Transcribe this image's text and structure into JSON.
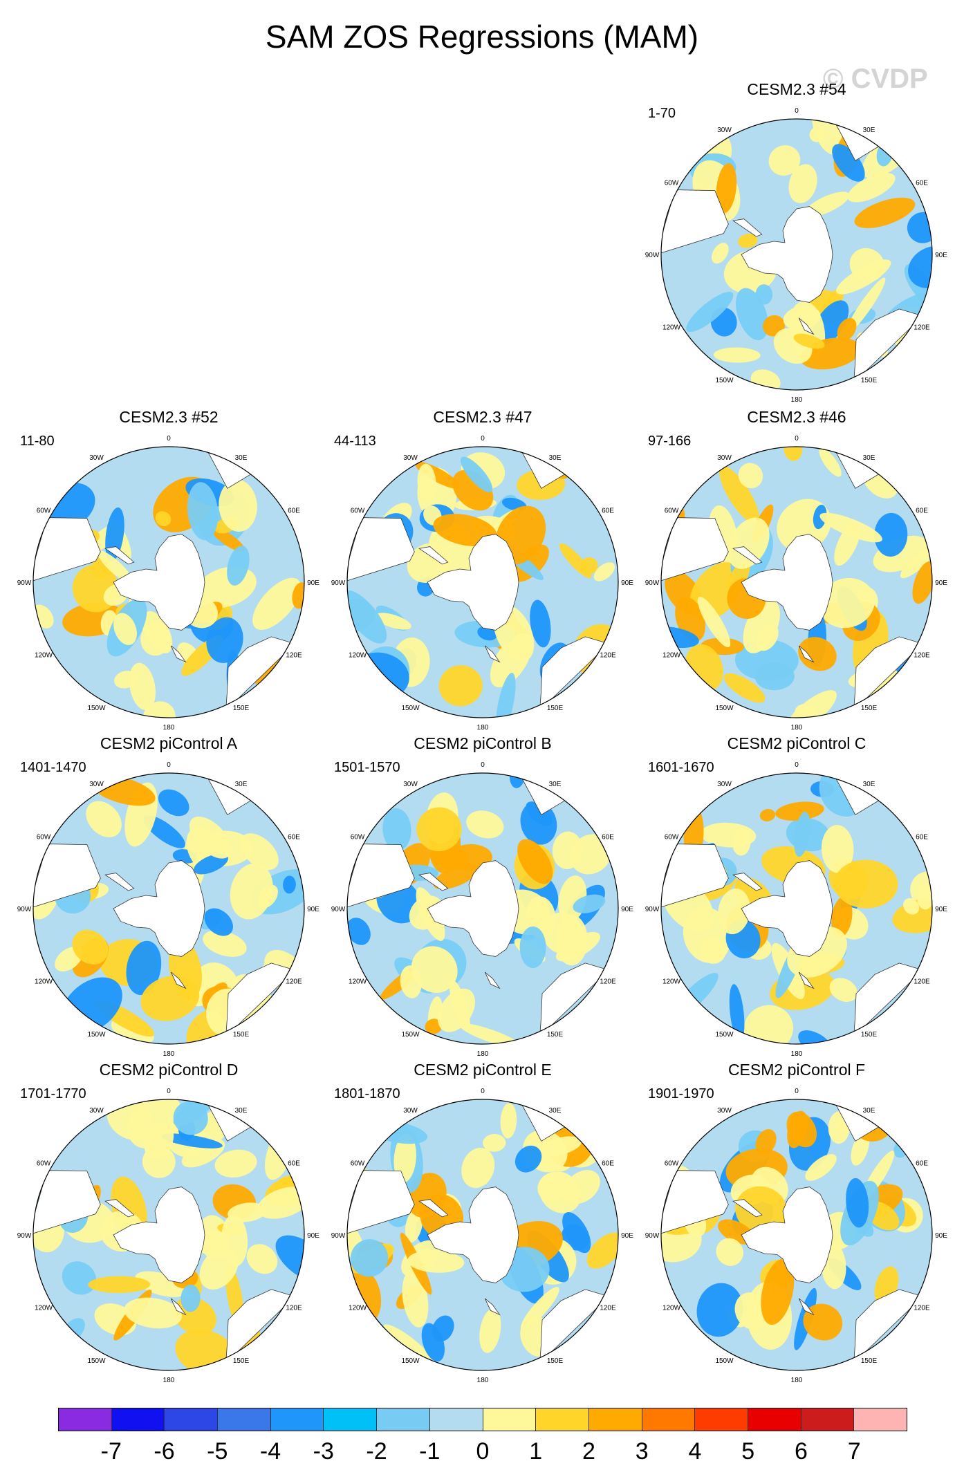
{
  "title": "SAM ZOS Regressions (MAM)",
  "watermark": "© CVDP",
  "lon_labels": [
    "0",
    "30E",
    "60E",
    "90E",
    "120E",
    "150E",
    "180",
    "150W",
    "120W",
    "90W",
    "60W",
    "30W"
  ],
  "panels": [
    {
      "title": "CESM2.3 #54",
      "subtitle": "1-70"
    },
    {
      "title": "CESM2.3 #52",
      "subtitle": "11-80"
    },
    {
      "title": "CESM2.3 #47",
      "subtitle": "44-113"
    },
    {
      "title": "CESM2.3 #46",
      "subtitle": "97-166"
    },
    {
      "title": "CESM2 piControl A",
      "subtitle": "1401-1470"
    },
    {
      "title": "CESM2 piControl B",
      "subtitle": "1501-1570"
    },
    {
      "title": "CESM2 piControl C",
      "subtitle": "1601-1670"
    },
    {
      "title": "CESM2 piControl D",
      "subtitle": "1701-1770"
    },
    {
      "title": "CESM2 piControl E",
      "subtitle": "1801-1870"
    },
    {
      "title": "CESM2 piControl F",
      "subtitle": "1901-1970"
    }
  ],
  "colorbar": {
    "colors": [
      "#8a2be2",
      "#1010f0",
      "#2d46e6",
      "#3a78ea",
      "#1e96fa",
      "#00c0f8",
      "#78ccf4",
      "#b4dcf0",
      "#fff89a",
      "#ffd52a",
      "#ffaa00",
      "#ff7800",
      "#ff3c00",
      "#e80000",
      "#cc1c1c",
      "#ffb4b4"
    ],
    "ticks": [
      "-7",
      "-6",
      "-5",
      "-4",
      "-3",
      "-2",
      "-1",
      "0",
      "1",
      "2",
      "3",
      "4",
      "5",
      "6",
      "7"
    ]
  },
  "colors": {
    "ocean_base": "#b4dcf0",
    "positive": "#fff89a",
    "land": "#ffffff"
  }
}
